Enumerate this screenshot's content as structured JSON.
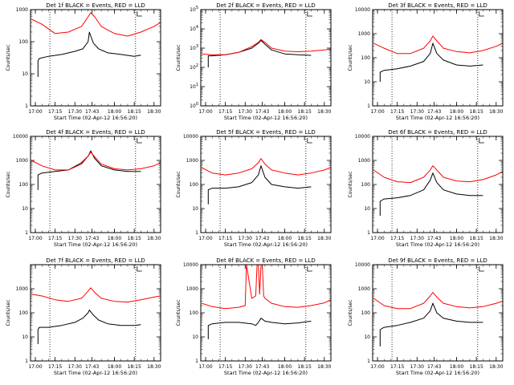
{
  "page": {
    "background": "#ffffff",
    "events_color": "#000000",
    "lld_color": "#ff0000"
  },
  "shared": {
    "x_tick_labels": [
      "17:00",
      "17:15",
      "17:30",
      "17:43",
      "18:00",
      "18:15",
      "18:30"
    ],
    "xlabel": "Start Time (02-Apr-12 16:56:20)",
    "ylabel": "Counts/sec",
    "vertical_marker_times": [
      "17:11",
      "18:16"
    ]
  },
  "chart_data": [
    {
      "type": "line",
      "title": "Det 1f BLACK = Events, RED = LLD",
      "log_y": true,
      "ylim": [
        1,
        1000
      ],
      "ytick_labels": [
        "1",
        "10",
        "100",
        "1000"
      ],
      "xlim": [
        "16:56:20",
        "18:35"
      ],
      "series": [
        {
          "name": "Events",
          "color": "#000000",
          "x": [
            "17:02",
            "17:02",
            "17:03",
            "17:10",
            "17:20",
            "17:30",
            "17:36",
            "17:40",
            "17:41",
            "17:42",
            "17:44",
            "17:48",
            "17:55",
            "18:05",
            "18:15",
            "18:20"
          ],
          "y": [
            8,
            25,
            30,
            35,
            40,
            50,
            60,
            100,
            200,
            150,
            90,
            60,
            45,
            40,
            35,
            38
          ]
        },
        {
          "name": "LLD",
          "color": "#ff0000",
          "x": [
            "16:57",
            "17:05",
            "17:15",
            "17:25",
            "17:35",
            "17:40",
            "17:42",
            "17:45",
            "17:50",
            "18:00",
            "18:10",
            "18:20",
            "18:30",
            "18:35"
          ],
          "y": [
            500,
            350,
            180,
            200,
            300,
            600,
            800,
            600,
            300,
            180,
            150,
            200,
            300,
            400
          ]
        }
      ]
    },
    {
      "type": "line",
      "title": "Det 2f BLACK = Events, RED = LLD",
      "log_y": true,
      "ylim": [
        1,
        100000
      ],
      "ytick_labels": [
        "10^0",
        "10^1",
        "10^2",
        "10^3",
        "10^4",
        "10^5"
      ],
      "xlim": [
        "16:56:20",
        "18:35"
      ],
      "series": [
        {
          "name": "Events",
          "color": "#000000",
          "x": [
            "17:02",
            "17:02",
            "17:05",
            "17:15",
            "17:25",
            "17:35",
            "17:40",
            "17:42",
            "17:45",
            "17:50",
            "18:00",
            "18:10",
            "18:20"
          ],
          "y": [
            100,
            400,
            400,
            450,
            600,
            1000,
            1800,
            2500,
            1600,
            800,
            500,
            450,
            420
          ]
        },
        {
          "name": "LLD",
          "color": "#ff0000",
          "x": [
            "16:57",
            "17:05",
            "17:15",
            "17:25",
            "17:35",
            "17:40",
            "17:42",
            "17:45",
            "17:50",
            "18:00",
            "18:10",
            "18:20",
            "18:30",
            "18:35"
          ],
          "y": [
            500,
            450,
            450,
            600,
            1200,
            2000,
            2800,
            2000,
            1000,
            700,
            650,
            700,
            800,
            900
          ]
        }
      ]
    },
    {
      "type": "line",
      "title": "Det 3f BLACK = Events, RED = LLD",
      "log_y": true,
      "ylim": [
        1,
        10000
      ],
      "ytick_labels": [
        "1",
        "10",
        "100",
        "1000",
        "10000"
      ],
      "xlim": [
        "16:56:20",
        "18:35"
      ],
      "series": [
        {
          "name": "Events",
          "color": "#000000",
          "x": [
            "17:02",
            "17:02",
            "17:05",
            "17:15",
            "17:25",
            "17:35",
            "17:40",
            "17:42",
            "17:45",
            "17:50",
            "18:00",
            "18:10",
            "18:20"
          ],
          "y": [
            10,
            25,
            30,
            35,
            45,
            70,
            150,
            400,
            150,
            80,
            50,
            45,
            50
          ]
        },
        {
          "name": "LLD",
          "color": "#ff0000",
          "x": [
            "16:57",
            "17:05",
            "17:15",
            "17:25",
            "17:35",
            "17:40",
            "17:42",
            "17:45",
            "17:50",
            "18:00",
            "18:10",
            "18:20",
            "18:30",
            "18:35"
          ],
          "y": [
            400,
            250,
            150,
            150,
            250,
            500,
            800,
            500,
            250,
            180,
            160,
            200,
            300,
            400
          ]
        }
      ]
    },
    {
      "type": "line",
      "title": "Det 4f BLACK = Events, RED = LLD",
      "log_y": true,
      "ylim": [
        1,
        10000
      ],
      "ytick_labels": [
        "1",
        "10",
        "100",
        "1000",
        "10000"
      ],
      "xlim": [
        "16:56:20",
        "18:35"
      ],
      "series": [
        {
          "name": "Events",
          "color": "#000000",
          "x": [
            "17:02",
            "17:02",
            "17:05",
            "17:15",
            "17:25",
            "17:35",
            "17:40",
            "17:42",
            "17:45",
            "17:50",
            "18:00",
            "18:10",
            "18:20"
          ],
          "y": [
            60,
            250,
            300,
            350,
            400,
            800,
            1500,
            2500,
            1200,
            600,
            400,
            350,
            350
          ]
        },
        {
          "name": "LLD",
          "color": "#ff0000",
          "x": [
            "16:57",
            "17:05",
            "17:15",
            "17:25",
            "17:35",
            "17:40",
            "17:42",
            "17:45",
            "17:50",
            "18:00",
            "18:10",
            "18:20",
            "18:30",
            "18:35"
          ],
          "y": [
            1000,
            600,
            400,
            400,
            700,
            1500,
            2200,
            1400,
            700,
            450,
            400,
            450,
            600,
            800
          ]
        }
      ]
    },
    {
      "type": "line",
      "title": "Det 5f BLACK = Events, RED = LLD",
      "log_y": true,
      "ylim": [
        1,
        10000
      ],
      "ytick_labels": [
        "1",
        "10",
        "100",
        "1000",
        "10000"
      ],
      "xlim": [
        "16:56:20",
        "18:35"
      ],
      "series": [
        {
          "name": "Events",
          "color": "#000000",
          "x": [
            "17:02",
            "17:02",
            "17:05",
            "17:15",
            "17:25",
            "17:35",
            "17:40",
            "17:42",
            "17:45",
            "17:50",
            "18:00",
            "18:10",
            "18:20"
          ],
          "y": [
            15,
            60,
            70,
            70,
            80,
            120,
            250,
            600,
            200,
            100,
            80,
            70,
            80
          ]
        },
        {
          "name": "LLD",
          "color": "#ff0000",
          "x": [
            "16:57",
            "17:05",
            "17:15",
            "17:25",
            "17:35",
            "17:40",
            "17:42",
            "17:45",
            "17:50",
            "18:00",
            "18:10",
            "18:20",
            "18:30",
            "18:35"
          ],
          "y": [
            500,
            300,
            250,
            300,
            450,
            800,
            1200,
            700,
            400,
            300,
            250,
            300,
            400,
            500
          ]
        }
      ]
    },
    {
      "type": "line",
      "title": "Det 6f BLACK = Events, RED = LLD",
      "log_y": true,
      "ylim": [
        1,
        10000
      ],
      "ytick_labels": [
        "1",
        "10",
        "100",
        "1000",
        "10000"
      ],
      "xlim": [
        "16:56:20",
        "18:35"
      ],
      "series": [
        {
          "name": "Events",
          "color": "#000000",
          "x": [
            "17:02",
            "17:02",
            "17:05",
            "17:15",
            "17:25",
            "17:35",
            "17:40",
            "17:42",
            "17:45",
            "17:50",
            "18:00",
            "18:10",
            "18:20"
          ],
          "y": [
            5,
            20,
            25,
            28,
            35,
            60,
            150,
            300,
            120,
            60,
            40,
            35,
            35
          ]
        },
        {
          "name": "LLD",
          "color": "#ff0000",
          "x": [
            "16:57",
            "17:05",
            "17:15",
            "17:25",
            "17:35",
            "17:40",
            "17:42",
            "17:45",
            "17:50",
            "18:00",
            "18:10",
            "18:20",
            "18:30",
            "18:35"
          ],
          "y": [
            400,
            200,
            130,
            120,
            200,
            400,
            600,
            400,
            200,
            140,
            130,
            160,
            250,
            350
          ]
        }
      ]
    },
    {
      "type": "line",
      "title": "Det 7f BLACK = Events, RED = LLD",
      "log_y": true,
      "ylim": [
        1,
        10000
      ],
      "ytick_labels": [
        "1",
        "10",
        "100",
        "1000"
      ],
      "xlim": [
        "16:56:20",
        "18:35"
      ],
      "series": [
        {
          "name": "Events",
          "color": "#000000",
          "x": [
            "17:02",
            "17:02",
            "17:03",
            "17:10",
            "17:20",
            "17:30",
            "17:36",
            "17:40",
            "17:41",
            "17:44",
            "17:48",
            "17:55",
            "18:05",
            "18:15",
            "18:20"
          ],
          "y": [
            5,
            20,
            25,
            25,
            30,
            40,
            60,
            100,
            130,
            80,
            50,
            35,
            30,
            30,
            32
          ]
        },
        {
          "name": "LLD",
          "color": "#ff0000",
          "x": [
            "16:57",
            "17:05",
            "17:15",
            "17:25",
            "17:35",
            "17:40",
            "17:42",
            "17:45",
            "17:50",
            "18:00",
            "18:10",
            "18:20",
            "18:30",
            "18:35"
          ],
          "y": [
            600,
            500,
            350,
            300,
            400,
            800,
            1100,
            700,
            400,
            300,
            280,
            350,
            450,
            500
          ]
        }
      ]
    },
    {
      "type": "line",
      "title": "Det 8f BLACK = Events, RED = LLD",
      "log_y": true,
      "ylim": [
        1,
        10000
      ],
      "ytick_labels": [
        "1",
        "10",
        "100",
        "1000",
        "10000"
      ],
      "xlim": [
        "16:56:20",
        "18:35"
      ],
      "series": [
        {
          "name": "Events",
          "color": "#000000",
          "x": [
            "17:02",
            "17:02",
            "17:05",
            "17:15",
            "17:25",
            "17:35",
            "17:38",
            "17:40",
            "17:42",
            "17:45",
            "17:50",
            "18:00",
            "18:10",
            "18:20"
          ],
          "y": [
            8,
            30,
            35,
            40,
            40,
            35,
            30,
            40,
            60,
            45,
            40,
            35,
            38,
            45
          ]
        },
        {
          "name": "LLD",
          "color": "#ff0000",
          "x": [
            "16:57",
            "17:05",
            "17:15",
            "17:25",
            "17:30",
            "17:31",
            "17:35",
            "17:38",
            "17:39",
            "17:40",
            "17:41",
            "17:42",
            "17:43",
            "17:44",
            "17:45",
            "17:50",
            "18:00",
            "18:10",
            "18:20",
            "18:30",
            "18:35"
          ],
          "y": [
            250,
            180,
            150,
            170,
            200,
            10000,
            400,
            500,
            10000,
            10000,
            600,
            10000,
            10000,
            500,
            400,
            250,
            180,
            170,
            200,
            260,
            350
          ]
        }
      ]
    },
    {
      "type": "line",
      "title": "Det 9f BLACK = Events, RED = LLD",
      "log_y": true,
      "ylim": [
        1,
        10000
      ],
      "ytick_labels": [
        "1",
        "10",
        "100",
        "1000",
        "10000"
      ],
      "xlim": [
        "16:56:20",
        "18:35"
      ],
      "series": [
        {
          "name": "Events",
          "color": "#000000",
          "x": [
            "17:02",
            "17:02",
            "17:05",
            "17:15",
            "17:25",
            "17:35",
            "17:40",
            "17:42",
            "17:45",
            "17:50",
            "18:00",
            "18:10",
            "18:20"
          ],
          "y": [
            4,
            20,
            25,
            30,
            40,
            60,
            120,
            250,
            100,
            60,
            45,
            40,
            40
          ]
        },
        {
          "name": "LLD",
          "color": "#ff0000",
          "x": [
            "16:57",
            "17:05",
            "17:15",
            "17:25",
            "17:35",
            "17:40",
            "17:42",
            "17:45",
            "17:50",
            "18:00",
            "18:10",
            "18:20",
            "18:30",
            "18:35"
          ],
          "y": [
            400,
            200,
            150,
            150,
            250,
            500,
            700,
            450,
            250,
            180,
            160,
            180,
            250,
            300
          ]
        }
      ]
    }
  ]
}
